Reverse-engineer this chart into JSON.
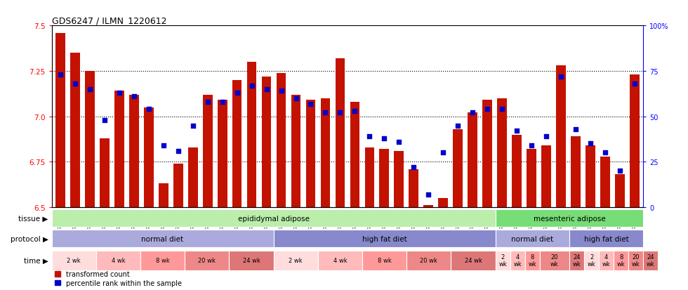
{
  "title": "GDS6247 / ILMN_1220612",
  "samples": [
    "GSM971546",
    "GSM971547",
    "GSM971548",
    "GSM971549",
    "GSM971550",
    "GSM971551",
    "GSM971552",
    "GSM971553",
    "GSM971554",
    "GSM971555",
    "GSM971556",
    "GSM971557",
    "GSM971558",
    "GSM971559",
    "GSM971560",
    "GSM971561",
    "GSM971562",
    "GSM971563",
    "GSM971564",
    "GSM971565",
    "GSM971566",
    "GSM971567",
    "GSM971568",
    "GSM971569",
    "GSM971570",
    "GSM971571",
    "GSM971572",
    "GSM971573",
    "GSM971574",
    "GSM971575",
    "GSM971576",
    "GSM971577",
    "GSM971578",
    "GSM971579",
    "GSM971580",
    "GSM971581",
    "GSM971582",
    "GSM971583",
    "GSM971584",
    "GSM971585"
  ],
  "transformed_count": [
    7.46,
    7.35,
    7.25,
    6.88,
    7.14,
    7.12,
    7.05,
    6.63,
    6.74,
    6.83,
    7.12,
    7.09,
    7.2,
    7.3,
    7.22,
    7.24,
    7.12,
    7.09,
    7.1,
    7.32,
    7.08,
    6.83,
    6.82,
    6.81,
    6.71,
    6.51,
    6.55,
    6.93,
    7.02,
    7.09,
    7.1,
    6.9,
    6.82,
    6.84,
    7.28,
    6.89,
    6.84,
    6.78,
    6.68,
    7.23
  ],
  "percentile_rank": [
    73,
    68,
    65,
    48,
    63,
    61,
    54,
    34,
    31,
    45,
    58,
    58,
    63,
    67,
    65,
    64,
    60,
    57,
    52,
    52,
    53,
    39,
    38,
    36,
    22,
    7,
    30,
    45,
    52,
    54,
    54,
    42,
    34,
    39,
    72,
    43,
    35,
    30,
    20,
    68
  ],
  "ylim_min": 6.5,
  "ylim_max": 7.5,
  "yticks": [
    6.5,
    6.75,
    7.0,
    7.25,
    7.5
  ],
  "bar_color": "#C41200",
  "dot_color": "#0000CC",
  "bg_color": "#FFFFFF",
  "tissue_groups": [
    {
      "label": "epididymal adipose",
      "start": 0,
      "end": 30,
      "color": "#BBEEAA"
    },
    {
      "label": "mesenteric adipose",
      "start": 30,
      "end": 40,
      "color": "#77DD77"
    }
  ],
  "protocol_groups": [
    {
      "label": "normal diet",
      "start": 0,
      "end": 15,
      "color": "#AAAADD"
    },
    {
      "label": "high fat diet",
      "start": 15,
      "end": 30,
      "color": "#8888CC"
    },
    {
      "label": "normal diet",
      "start": 30,
      "end": 35,
      "color": "#AAAADD"
    },
    {
      "label": "high fat diet",
      "start": 35,
      "end": 40,
      "color": "#8888CC"
    }
  ],
  "time_groups": [
    {
      "label": "2 wk",
      "start": 0,
      "end": 3,
      "color": "#FFDDDD"
    },
    {
      "label": "4 wk",
      "start": 3,
      "end": 6,
      "color": "#FFBBBB"
    },
    {
      "label": "8 wk",
      "start": 6,
      "end": 9,
      "color": "#FF9999"
    },
    {
      "label": "20 wk",
      "start": 9,
      "end": 12,
      "color": "#EE8888"
    },
    {
      "label": "24 wk",
      "start": 12,
      "end": 15,
      "color": "#DD7777"
    },
    {
      "label": "2 wk",
      "start": 15,
      "end": 18,
      "color": "#FFDDDD"
    },
    {
      "label": "4 wk",
      "start": 18,
      "end": 21,
      "color": "#FFBBBB"
    },
    {
      "label": "8 wk",
      "start": 21,
      "end": 24,
      "color": "#FF9999"
    },
    {
      "label": "20 wk",
      "start": 24,
      "end": 27,
      "color": "#EE8888"
    },
    {
      "label": "24 wk",
      "start": 27,
      "end": 30,
      "color": "#DD7777"
    },
    {
      "label": "2\nwk",
      "start": 30,
      "end": 31,
      "color": "#FFDDDD"
    },
    {
      "label": "4\nwk",
      "start": 31,
      "end": 32,
      "color": "#FFBBBB"
    },
    {
      "label": "8\nwk",
      "start": 32,
      "end": 33,
      "color": "#FF9999"
    },
    {
      "label": "20\nwk",
      "start": 33,
      "end": 35,
      "color": "#EE8888"
    },
    {
      "label": "24\nwk",
      "start": 35,
      "end": 36,
      "color": "#DD7777"
    },
    {
      "label": "2\nwk",
      "start": 36,
      "end": 37,
      "color": "#FFDDDD"
    },
    {
      "label": "4\nwk",
      "start": 37,
      "end": 38,
      "color": "#FFBBBB"
    },
    {
      "label": "8\nwk",
      "start": 38,
      "end": 39,
      "color": "#FF9999"
    },
    {
      "label": "20\nwk",
      "start": 39,
      "end": 40,
      "color": "#EE8888"
    },
    {
      "label": "24\nwk",
      "start": 40,
      "end": 41,
      "color": "#DD7777"
    }
  ]
}
